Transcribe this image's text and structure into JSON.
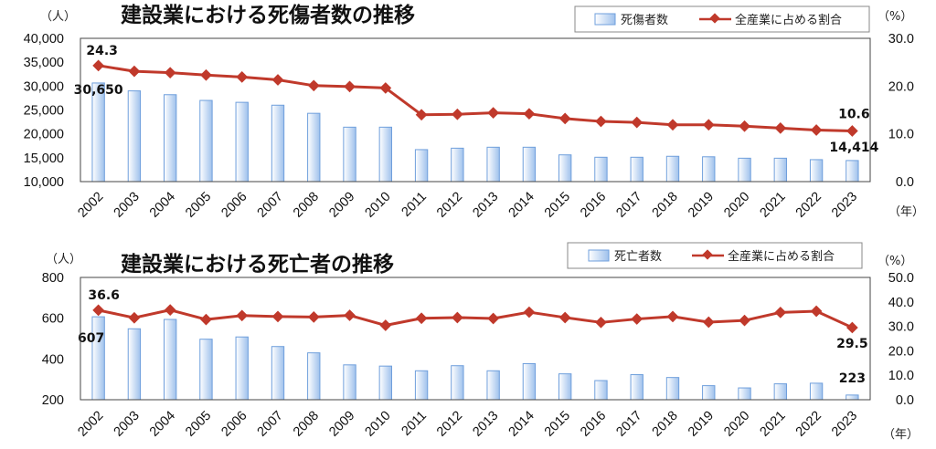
{
  "colors": {
    "bar_fill_top": "#ffffff",
    "bar_fill_bottom": "#9fc1ec",
    "bar_stroke": "#6f9fdc",
    "line": "#c0392b",
    "marker": "#c0392b"
  },
  "chart_data": [
    {
      "type": "bar+line",
      "title": "建設業における死傷者数の推移",
      "left_unit": "（人）",
      "right_unit": "（%）",
      "x_unit": "（年）",
      "categories": [
        "2002",
        "2003",
        "2004",
        "2005",
        "2006",
        "2007",
        "2008",
        "2009",
        "2010",
        "2011",
        "2012",
        "2013",
        "2014",
        "2015",
        "2016",
        "2017",
        "2018",
        "2019",
        "2020",
        "2021",
        "2022",
        "2023"
      ],
      "ylim": [
        10000,
        40000
      ],
      "yticks": [
        10000,
        15000,
        20000,
        25000,
        30000,
        35000,
        40000
      ],
      "ytick_labels": [
        "10,000",
        "15,000",
        "20,000",
        "25,000",
        "30,000",
        "35,000",
        "40,000"
      ],
      "y2lim": [
        0,
        30
      ],
      "y2ticks": [
        0,
        10,
        20,
        30
      ],
      "y2tick_labels": [
        "0.0",
        "10.0",
        "20.0",
        "30.0"
      ],
      "legend": {
        "bar": "死傷者数",
        "line": "全産業に占める割合",
        "position": "top-right"
      },
      "series": [
        {
          "name": "死傷者数",
          "kind": "bar",
          "axis": "left",
          "values": [
            30650,
            29000,
            28200,
            27000,
            26600,
            26000,
            24300,
            21400,
            21400,
            16700,
            17000,
            17200,
            17200,
            15600,
            15100,
            15100,
            15300,
            15200,
            14900,
            14900,
            14600,
            14414
          ]
        },
        {
          "name": "全産業に占める割合",
          "kind": "line",
          "axis": "right",
          "values": [
            24.3,
            23.1,
            22.8,
            22.3,
            21.9,
            21.3,
            20.1,
            19.9,
            19.6,
            14.0,
            14.1,
            14.4,
            14.2,
            13.2,
            12.6,
            12.4,
            11.9,
            11.9,
            11.6,
            11.2,
            10.8,
            10.6
          ]
        }
      ],
      "data_labels": [
        {
          "series": 0,
          "index": 0,
          "text": "30,650"
        },
        {
          "series": 0,
          "index": 21,
          "text": "14,414"
        },
        {
          "series": 1,
          "index": 0,
          "text": "24.3"
        },
        {
          "series": 1,
          "index": 21,
          "text": "10.6"
        }
      ],
      "grid": false
    },
    {
      "type": "bar+line",
      "title": "建設業における死亡者の推移",
      "left_unit": "（人）",
      "right_unit": "（%）",
      "x_unit": "（年）",
      "categories": [
        "2002",
        "2003",
        "2004",
        "2005",
        "2006",
        "2007",
        "2008",
        "2009",
        "2010",
        "2011",
        "2012",
        "2013",
        "2014",
        "2015",
        "2016",
        "2017",
        "2018",
        "2019",
        "2020",
        "2021",
        "2022",
        "2023"
      ],
      "ylim": [
        200,
        800
      ],
      "yticks": [
        200,
        400,
        600,
        800
      ],
      "ytick_labels": [
        "200",
        "400",
        "600",
        "800"
      ],
      "y2lim": [
        0,
        50
      ],
      "y2ticks": [
        0,
        10,
        20,
        30,
        40,
        50
      ],
      "y2tick_labels": [
        "0.0",
        "10.0",
        "20.0",
        "30.0",
        "40.0",
        "50.0"
      ],
      "legend": {
        "bar": "死亡者数",
        "line": "全産業に占める割合",
        "position": "top-right"
      },
      "series": [
        {
          "name": "死亡者数",
          "kind": "bar",
          "axis": "left",
          "values": [
            607,
            548,
            594,
            497,
            508,
            461,
            430,
            371,
            365,
            342,
            367,
            342,
            377,
            327,
            294,
            323,
            309,
            269,
            258,
            278,
            281,
            223
          ]
        },
        {
          "name": "全産業に占める割合",
          "kind": "line",
          "axis": "right",
          "values": [
            36.6,
            33.5,
            36.7,
            32.8,
            34.4,
            34.0,
            33.8,
            34.5,
            30.4,
            33.3,
            33.6,
            33.2,
            35.8,
            33.6,
            31.6,
            33.0,
            34.0,
            31.7,
            32.4,
            35.7,
            36.2,
            29.5
          ]
        }
      ],
      "data_labels": [
        {
          "series": 0,
          "index": 0,
          "text": "607"
        },
        {
          "series": 0,
          "index": 21,
          "text": "223"
        },
        {
          "series": 1,
          "index": 0,
          "text": "36.6"
        },
        {
          "series": 1,
          "index": 21,
          "text": "29.5"
        }
      ],
      "grid": false
    }
  ]
}
